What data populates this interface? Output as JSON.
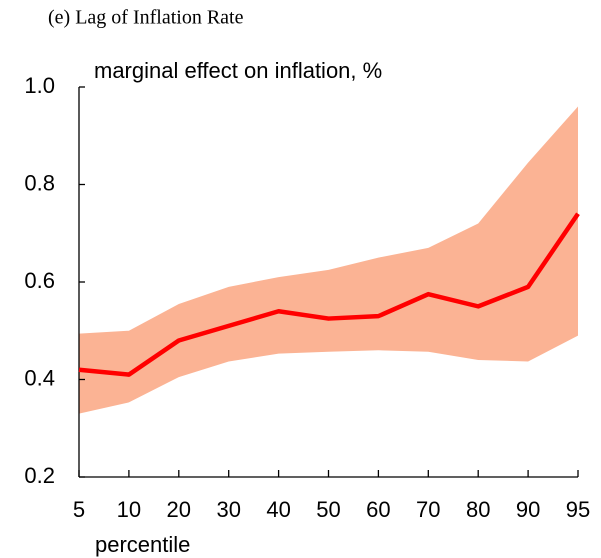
{
  "chart_data": {
    "type": "line-band",
    "title": "(e) Lag of Inflation Rate",
    "ylabel": "marginal effect on inflation, %",
    "xlabel": "percentile",
    "categories": [
      "5",
      "10",
      "20",
      "30",
      "40",
      "50",
      "60",
      "70",
      "80",
      "90",
      "95"
    ],
    "values": [
      0.42,
      0.41,
      0.48,
      0.51,
      0.54,
      0.525,
      0.53,
      0.575,
      0.55,
      0.59,
      0.74
    ],
    "color": "#ff0000",
    "band": {
      "lower": [
        0.33,
        0.353,
        0.405,
        0.437,
        0.453,
        0.457,
        0.46,
        0.457,
        0.44,
        0.437,
        0.49
      ],
      "upper": [
        0.494,
        0.5,
        0.555,
        0.59,
        0.61,
        0.625,
        0.65,
        0.67,
        0.72,
        0.845,
        0.96
      ],
      "color": "#fbb394"
    },
    "ylim": [
      0.2,
      1.0
    ],
    "yticks": [
      {
        "value": 0.2,
        "label": "0.2"
      },
      {
        "value": 0.4,
        "label": "0.4"
      },
      {
        "value": 0.6,
        "label": "0.6"
      },
      {
        "value": 0.8,
        "label": "0.8"
      },
      {
        "value": 1.0,
        "label": "1.0"
      }
    ]
  }
}
